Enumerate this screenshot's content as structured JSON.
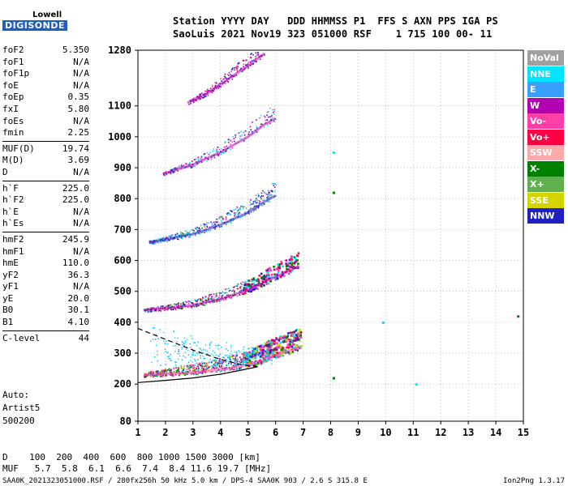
{
  "logo": {
    "line1": "Lowell",
    "line2": "DIGISONDE"
  },
  "header": {
    "line1": "Station YYYY DAY   DDD HHMMSS P1  FFS S AXN PPS IGA PS",
    "line2": "SaoLuis 2021 Nov19 323 051000 RSF    1 715 100 00- 11"
  },
  "params": [
    {
      "name": "foF2",
      "value": "5.350"
    },
    {
      "name": "foF1",
      "value": "N/A"
    },
    {
      "name": "foF1p",
      "value": "N/A"
    },
    {
      "name": "foE",
      "value": "N/A"
    },
    {
      "name": "foEp",
      "value": "0.35"
    },
    {
      "name": "fxI",
      "value": "5.80"
    },
    {
      "name": "foEs",
      "value": "N/A"
    },
    {
      "name": "fmin",
      "value": "2.25"
    },
    {
      "name": "MUF(D)",
      "value": "19.74"
    },
    {
      "name": "M(D)",
      "value": "3.69"
    },
    {
      "name": "D",
      "value": "N/A"
    },
    {
      "name": "h`F",
      "value": "225.0"
    },
    {
      "name": "h`F2",
      "value": "225.0"
    },
    {
      "name": "h`E",
      "value": "N/A"
    },
    {
      "name": "h`Es",
      "value": "N/A"
    },
    {
      "name": "hmF2",
      "value": "245.9"
    },
    {
      "name": "hmF1",
      "value": "N/A"
    },
    {
      "name": "hmE",
      "value": "110.0"
    },
    {
      "name": "yF2",
      "value": "36.3"
    },
    {
      "name": "yF1",
      "value": "N/A"
    },
    {
      "name": "yE",
      "value": "20.0"
    },
    {
      "name": "B0",
      "value": "30.1"
    },
    {
      "name": "B1",
      "value": "4.10"
    },
    {
      "name": "C-level",
      "value": "44"
    }
  ],
  "auto": {
    "line1": "Auto:",
    "line2": "Artist5",
    "line3": "500200"
  },
  "bottom": {
    "dist_line": "D    100  200  400  600  800 1000 1500 3000 [km]",
    "muf_line": "MUF   5.7  5.8  6.1  6.6  7.4  8.4 11.6 19.7 [MHz]"
  },
  "footer": {
    "left": "SAA0K_2021323051000.RSF / 280fx256h 50 kHz 5.0 km / DPS-4 SAA0K 903 / 2.6 S 315.8 E",
    "right": "Ion2Png 1.3.17"
  },
  "legend": [
    {
      "label": "NoVal",
      "color": "#a0a0a0"
    },
    {
      "label": "NNE",
      "color": "#00e5ff"
    },
    {
      "label": "E",
      "color": "#3aa0ff"
    },
    {
      "label": "W",
      "color": "#b000b0"
    },
    {
      "label": "Vo-",
      "color": "#ff3fa8"
    },
    {
      "label": "Vo+",
      "color": "#ff0044"
    },
    {
      "label": "SSW",
      "color": "#ffaaaa"
    },
    {
      "label": "X-",
      "color": "#008000"
    },
    {
      "label": "X+",
      "color": "#60b050"
    },
    {
      "label": "SSE",
      "color": "#d4d400"
    },
    {
      "label": "NNW",
      "color": "#2020c0"
    }
  ],
  "chart_data": {
    "type": "scatter",
    "xlim": [
      1,
      15
    ],
    "ylim": [
      80,
      1280
    ],
    "x_ticks": [
      "1",
      "2",
      "3",
      "4",
      "5",
      "6",
      "7",
      "8",
      "9",
      "10",
      "11",
      "12",
      "13",
      "14",
      "15"
    ],
    "y_ticks": [
      "80",
      "200",
      "300",
      "400",
      "500",
      "600",
      "700",
      "800",
      "900",
      "1000",
      "1100",
      "1280"
    ],
    "grid": true,
    "traces": [
      {
        "name": "F",
        "x": [
          1.2,
          2.0,
          3.0,
          4.0,
          5.0,
          5.6,
          6.2,
          6.9
        ],
        "y": [
          230,
          233,
          238,
          247,
          262,
          282,
          300,
          320
        ],
        "color": "#ff3fa8"
      },
      {
        "name": "2F",
        "x": [
          1.2,
          2.0,
          3.0,
          4.0,
          5.0,
          5.6,
          6.2,
          6.8
        ],
        "y": [
          440,
          445,
          455,
          475,
          505,
          530,
          555,
          580
        ],
        "color": "#b000b0"
      },
      {
        "name": "3F",
        "x": [
          1.4,
          2.0,
          3.0,
          4.0,
          5.0,
          5.6,
          6.0
        ],
        "y": [
          660,
          668,
          685,
          715,
          755,
          790,
          810
        ],
        "color": "#2020c0"
      },
      {
        "name": "4F",
        "x": [
          1.9,
          3.0,
          4.0,
          5.0,
          5.6,
          6.0
        ],
        "y": [
          880,
          910,
          950,
          1000,
          1040,
          1060
        ],
        "color": "#b000b0"
      },
      {
        "name": "5F",
        "x": [
          2.8,
          3.5,
          4.0,
          5.0,
          5.6
        ],
        "y": [
          1110,
          1140,
          1170,
          1230,
          1270
        ],
        "color": "#b000b0"
      }
    ],
    "stray_points": [
      {
        "x": 8.1,
        "y": 950
      },
      {
        "x": 8.1,
        "y": 820
      },
      {
        "x": 11.1,
        "y": 200
      },
      {
        "x": 14.8,
        "y": 420
      },
      {
        "x": 9.9,
        "y": 400
      },
      {
        "x": 8.1,
        "y": 220
      }
    ],
    "profile_solid": {
      "x": [
        1.0,
        2.0,
        3.0,
        4.0,
        4.8,
        5.35
      ],
      "y": [
        205,
        212,
        220,
        232,
        246,
        256
      ]
    },
    "profile_dashed": {
      "x": [
        1.0,
        2.0,
        3.0,
        4.0,
        4.8,
        5.35
      ],
      "y": [
        380,
        345,
        310,
        280,
        262,
        256
      ]
    }
  }
}
